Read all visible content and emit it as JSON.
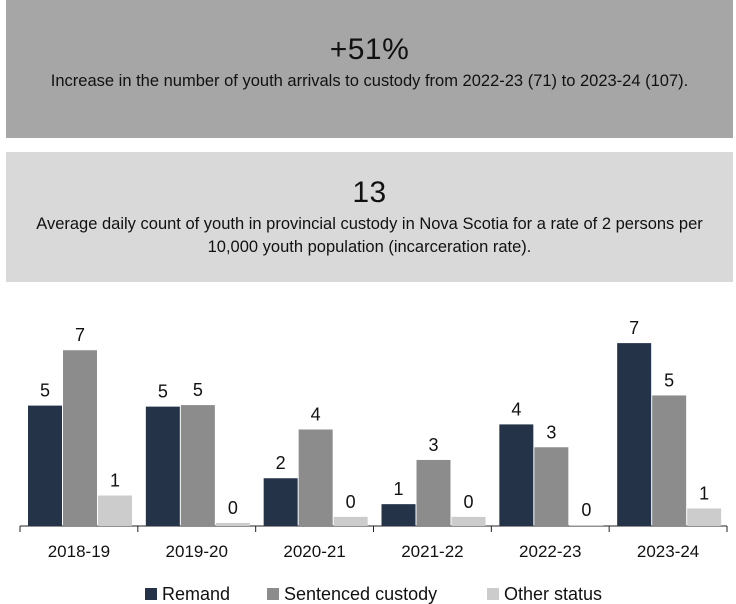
{
  "stats": [
    {
      "value": "+51%",
      "description": "Increase in the number of youth arrivals to custody from 2022-23 (71) to 2023-24 (107)."
    },
    {
      "value": "13",
      "description": "Average daily count of youth in provincial custody in Nova Scotia for a rate of 2 persons per 10,000 youth population (incarceration rate)."
    }
  ],
  "chart_data": {
    "type": "bar",
    "title": "",
    "xlabel": "",
    "ylabel": "",
    "categories": [
      "2018-19",
      "2019-20",
      "2020-21",
      "2021-22",
      "2022-23",
      "2023-24"
    ],
    "series": [
      {
        "name": "Remand",
        "color": "#253349",
        "values": [
          5,
          5,
          2,
          1,
          4,
          7
        ],
        "plot_values": [
          4.74,
          4.7,
          1.88,
          0.86,
          4.0,
          7.2
        ]
      },
      {
        "name": "Sentenced custody",
        "color": "#8c8c8c",
        "values": [
          7,
          5,
          4,
          3,
          3,
          5
        ],
        "plot_values": [
          6.92,
          4.76,
          3.8,
          2.6,
          3.1,
          5.14
        ]
      },
      {
        "name": "Other status",
        "color": "#cccccc",
        "values": [
          1,
          0,
          0,
          0,
          0,
          1
        ],
        "plot_values": [
          1.2,
          0.12,
          0.36,
          0.36,
          0.04,
          0.69
        ]
      }
    ],
    "ylim": [
      0,
      7.5
    ],
    "grid": false,
    "legend": "bottom"
  }
}
